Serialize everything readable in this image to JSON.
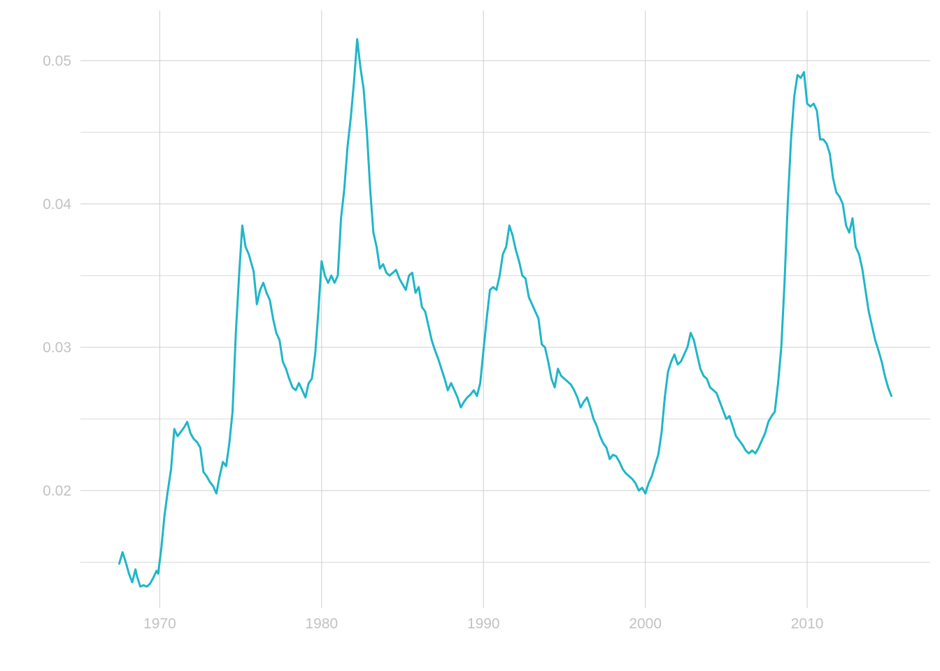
{
  "chart_data": {
    "type": "line",
    "title": "",
    "xlabel": "",
    "ylabel": "",
    "xlim": [
      1965.1,
      2017.6
    ],
    "ylim": [
      0.0118,
      0.0535
    ],
    "x_ticks": [
      1970,
      1980,
      1990,
      2000,
      2010
    ],
    "x_tick_labels": [
      "1970",
      "1980",
      "1990",
      "2000",
      "2010"
    ],
    "y_ticks": [
      0.02,
      0.03,
      0.04,
      0.05
    ],
    "y_tick_labels": [
      "0.02",
      "0.03",
      "0.04",
      "0.05"
    ],
    "y_minor_ticks": [
      0.015,
      0.025,
      0.035,
      0.045
    ],
    "grid": true,
    "colors": {
      "line": "#1fb6c8",
      "grid": "#cfcfcf",
      "tick_text": "#c2c2c2"
    },
    "series": [
      {
        "x": [
          1967.5,
          1967.7,
          1967.9,
          1968.1,
          1968.3,
          1968.5,
          1968.6,
          1968.8,
          1969.0,
          1969.2,
          1969.4,
          1969.6,
          1969.8,
          1969.9,
          1970.1,
          1970.3,
          1970.5,
          1970.7,
          1970.9,
          1971.1,
          1971.3,
          1971.5,
          1971.7,
          1971.9,
          1972.1,
          1972.3,
          1972.5,
          1972.7,
          1972.9,
          1973.1,
          1973.3,
          1973.5,
          1973.7,
          1973.9,
          1974.1,
          1974.3,
          1974.5,
          1974.7,
          1974.9,
          1975.1,
          1975.3,
          1975.5,
          1975.8,
          1976.0,
          1976.2,
          1976.4,
          1976.6,
          1976.8,
          1977.0,
          1977.2,
          1977.4,
          1977.6,
          1977.8,
          1978.0,
          1978.2,
          1978.4,
          1978.6,
          1978.8,
          1979.0,
          1979.2,
          1979.4,
          1979.6,
          1979.8,
          1980.0,
          1980.2,
          1980.4,
          1980.6,
          1980.8,
          1981.0,
          1981.2,
          1981.4,
          1981.6,
          1981.8,
          1982.0,
          1982.2,
          1982.4,
          1982.6,
          1982.8,
          1983.0,
          1983.2,
          1983.4,
          1983.6,
          1983.8,
          1984.0,
          1984.2,
          1984.4,
          1984.6,
          1984.8,
          1985.0,
          1985.2,
          1985.4,
          1985.6,
          1985.8,
          1986.0,
          1986.2,
          1986.4,
          1986.6,
          1986.8,
          1987.0,
          1987.2,
          1987.4,
          1987.6,
          1987.8,
          1988.0,
          1988.2,
          1988.4,
          1988.6,
          1988.8,
          1989.0,
          1989.2,
          1989.4,
          1989.6,
          1989.8,
          1990.0,
          1990.2,
          1990.4,
          1990.6,
          1990.8,
          1991.0,
          1991.2,
          1991.4,
          1991.6,
          1991.8,
          1992.0,
          1992.2,
          1992.4,
          1992.6,
          1992.8,
          1993.0,
          1993.2,
          1993.4,
          1993.6,
          1993.8,
          1994.0,
          1994.2,
          1994.4,
          1994.6,
          1994.8,
          1995.0,
          1995.2,
          1995.4,
          1995.6,
          1995.8,
          1996.0,
          1996.2,
          1996.4,
          1996.6,
          1996.8,
          1997.0,
          1997.2,
          1997.4,
          1997.6,
          1997.8,
          1998.0,
          1998.2,
          1998.4,
          1998.6,
          1998.8,
          1999.0,
          1999.2,
          1999.4,
          1999.6,
          1999.8,
          2000.0,
          2000.2,
          2000.4,
          2000.6,
          2000.8,
          2001.0,
          2001.2,
          2001.4,
          2001.6,
          2001.8,
          2002.0,
          2002.2,
          2002.4,
          2002.6,
          2002.8,
          2003.0,
          2003.2,
          2003.4,
          2003.6,
          2003.8,
          2004.0,
          2004.2,
          2004.4,
          2004.6,
          2004.8,
          2005.0,
          2005.2,
          2005.4,
          2005.6,
          2005.8,
          2006.0,
          2006.2,
          2006.4,
          2006.6,
          2006.8,
          2007.0,
          2007.2,
          2007.4,
          2007.6,
          2007.8,
          2008.0,
          2008.2,
          2008.4,
          2008.6,
          2008.8,
          2009.0,
          2009.2,
          2009.4,
          2009.6,
          2009.8,
          2010.0,
          2010.2,
          2010.4,
          2010.6,
          2010.8,
          2011.0,
          2011.2,
          2011.4,
          2011.6,
          2011.8,
          2012.0,
          2012.2,
          2012.4,
          2012.6,
          2012.8,
          2013.0,
          2013.2,
          2013.4,
          2013.6,
          2013.8,
          2014.0,
          2014.2,
          2014.4,
          2014.6,
          2014.8,
          2015.0,
          2015.2
        ],
        "values": [
          0.0149,
          0.0157,
          0.015,
          0.0142,
          0.0136,
          0.0145,
          0.014,
          0.0133,
          0.0134,
          0.0133,
          0.0135,
          0.0139,
          0.0144,
          0.0142,
          0.016,
          0.0183,
          0.02,
          0.0215,
          0.0243,
          0.0238,
          0.0241,
          0.0244,
          0.0248,
          0.024,
          0.0236,
          0.0234,
          0.023,
          0.0213,
          0.021,
          0.0206,
          0.0203,
          0.0198,
          0.021,
          0.022,
          0.0217,
          0.0233,
          0.0255,
          0.031,
          0.035,
          0.0385,
          0.037,
          0.0365,
          0.0353,
          0.033,
          0.034,
          0.0345,
          0.0338,
          0.0333,
          0.032,
          0.031,
          0.0305,
          0.029,
          0.0285,
          0.0278,
          0.0272,
          0.027,
          0.0275,
          0.027,
          0.0265,
          0.0275,
          0.0278,
          0.0295,
          0.0325,
          0.036,
          0.035,
          0.0345,
          0.035,
          0.0345,
          0.035,
          0.039,
          0.041,
          0.044,
          0.046,
          0.0485,
          0.0515,
          0.0495,
          0.048,
          0.045,
          0.041,
          0.038,
          0.037,
          0.0355,
          0.0358,
          0.0352,
          0.035,
          0.0352,
          0.0354,
          0.0348,
          0.0344,
          0.034,
          0.035,
          0.0352,
          0.0338,
          0.0342,
          0.0328,
          0.0325,
          0.0315,
          0.0305,
          0.0298,
          0.0292,
          0.0285,
          0.0278,
          0.027,
          0.0275,
          0.027,
          0.0265,
          0.0258,
          0.0262,
          0.0265,
          0.0267,
          0.027,
          0.0266,
          0.0275,
          0.0298,
          0.032,
          0.034,
          0.0342,
          0.034,
          0.035,
          0.0365,
          0.037,
          0.0385,
          0.0378,
          0.0368,
          0.036,
          0.035,
          0.0348,
          0.0335,
          0.033,
          0.0325,
          0.032,
          0.0302,
          0.03,
          0.029,
          0.0278,
          0.0272,
          0.0285,
          0.028,
          0.0278,
          0.0276,
          0.0274,
          0.027,
          0.0265,
          0.0258,
          0.0262,
          0.0265,
          0.0258,
          0.025,
          0.0245,
          0.0238,
          0.0233,
          0.023,
          0.0222,
          0.0225,
          0.0224,
          0.022,
          0.0215,
          0.0212,
          0.021,
          0.0208,
          0.0205,
          0.02,
          0.0202,
          0.0198,
          0.0205,
          0.021,
          0.0218,
          0.0225,
          0.024,
          0.0265,
          0.0283,
          0.029,
          0.0295,
          0.0288,
          0.029,
          0.0295,
          0.03,
          0.031,
          0.0305,
          0.0295,
          0.0285,
          0.028,
          0.0278,
          0.0272,
          0.027,
          0.0268,
          0.0262,
          0.0256,
          0.025,
          0.0252,
          0.0245,
          0.0238,
          0.0235,
          0.0232,
          0.0228,
          0.0226,
          0.0228,
          0.0226,
          0.023,
          0.0235,
          0.024,
          0.0248,
          0.0252,
          0.0255,
          0.0275,
          0.03,
          0.0345,
          0.04,
          0.0445,
          0.0475,
          0.049,
          0.0488,
          0.0492,
          0.047,
          0.0468,
          0.047,
          0.0465,
          0.0445,
          0.0445,
          0.0442,
          0.0435,
          0.0418,
          0.0408,
          0.0405,
          0.04,
          0.0385,
          0.038,
          0.039,
          0.037,
          0.0365,
          0.0355,
          0.034,
          0.0325,
          0.0315,
          0.0305,
          0.0298,
          0.029,
          0.028,
          0.0272,
          0.0266
        ]
      }
    ]
  }
}
